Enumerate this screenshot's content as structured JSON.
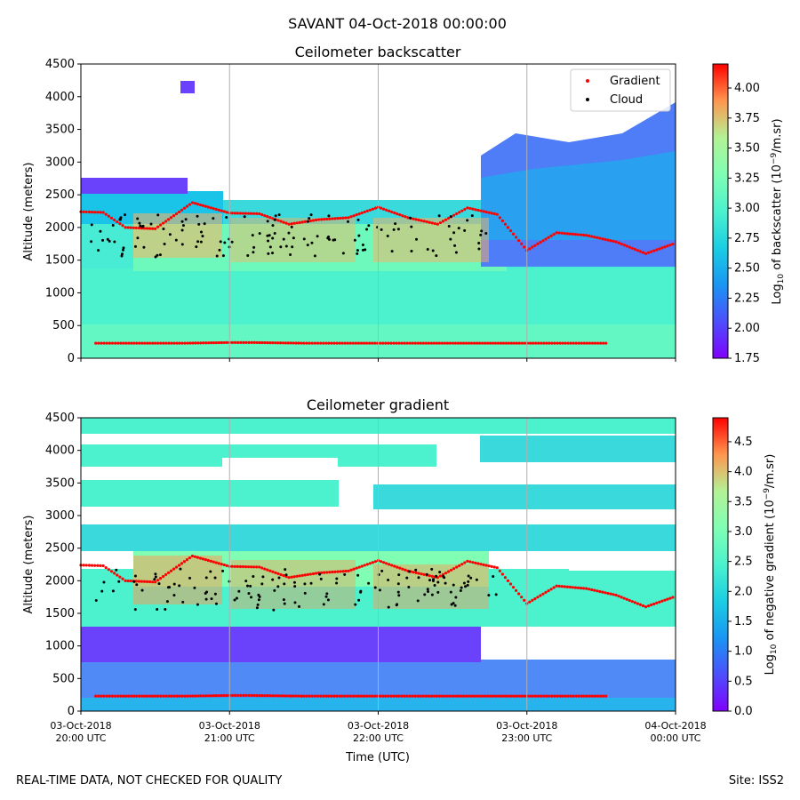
{
  "figure": {
    "suptitle": "SAVANT 04-Oct-2018 00:00:00",
    "footer_left": "REAL-TIME DATA, NOT CHECKED FOR QUALITY",
    "footer_right": "Site: ISS2"
  },
  "chart_data": [
    {
      "type": "heatmap",
      "title": "Ceilometer backscatter",
      "xlabel": "",
      "ylabel": "Altitude (meters)",
      "ylim": [
        0,
        4500
      ],
      "yticks": [
        "0",
        "500",
        "1000",
        "1500",
        "2000",
        "2500",
        "3000",
        "3500",
        "4000",
        "4500"
      ],
      "xlim_hours": [
        20,
        24
      ],
      "xticks": [],
      "grid": "vertical lines at each hour",
      "colorbar": {
        "label": "Log10 of backscatter (10^-9/m.sr)",
        "label_parts": {
          "prefix": "Log",
          "sub": "10",
          "mid": " of backscatter (10",
          "sup": "−9",
          "suffix": "/m.sr)"
        },
        "range": [
          1.75,
          4.2
        ],
        "ticks": [
          "1.75",
          "2.00",
          "2.25",
          "2.50",
          "2.75",
          "3.00",
          "3.25",
          "3.50",
          "3.75",
          "4.00"
        ],
        "colormap": "rainbow"
      },
      "legend": {
        "placement": "top-right",
        "entries": [
          {
            "label": "Gradient",
            "color": "#ff0000"
          },
          {
            "label": "Cloud",
            "color": "#000000"
          }
        ]
      },
      "series": [
        {
          "name": "Gradient (upper layer)",
          "color": "#ff0000",
          "x_hours": [
            20.0,
            20.15,
            20.3,
            20.5,
            20.75,
            21.0,
            21.2,
            21.4,
            21.6,
            21.8,
            22.0,
            22.2,
            22.4,
            22.6,
            22.8,
            23.0,
            23.2,
            23.4,
            23.6,
            23.8,
            24.0
          ],
          "altitude_m": [
            2240,
            2230,
            2000,
            1980,
            2380,
            2220,
            2210,
            2050,
            2120,
            2150,
            2310,
            2150,
            2050,
            2300,
            2200,
            1650,
            1920,
            1880,
            1780,
            1600,
            1760
          ]
        },
        {
          "name": "Gradient (lower layer)",
          "color": "#ff0000",
          "x_hours": [
            20.1,
            20.25,
            20.5,
            20.7,
            21.0,
            21.15,
            21.5,
            21.65,
            22.05,
            22.25,
            22.7,
            22.95,
            23.15,
            23.35,
            23.55
          ],
          "altitude_m": [
            230,
            230,
            230,
            230,
            240,
            240,
            230,
            230,
            230,
            230,
            230,
            230,
            230,
            230,
            230
          ]
        }
      ]
    },
    {
      "type": "heatmap",
      "title": "Ceilometer gradient",
      "xlabel": "Time (UTC)",
      "ylabel": "Altitude (meters)",
      "ylim": [
        0,
        4500
      ],
      "yticks": [
        "0",
        "500",
        "1000",
        "1500",
        "2000",
        "2500",
        "3000",
        "3500",
        "4000",
        "4500"
      ],
      "xlim_hours": [
        20,
        24
      ],
      "xticks": [
        {
          "line1": "03-Oct-2018",
          "line2": "20:00 UTC"
        },
        {
          "line1": "03-Oct-2018",
          "line2": "21:00 UTC"
        },
        {
          "line1": "03-Oct-2018",
          "line2": "22:00 UTC"
        },
        {
          "line1": "03-Oct-2018",
          "line2": "23:00 UTC"
        },
        {
          "line1": "04-Oct-2018",
          "line2": "00:00 UTC"
        }
      ],
      "grid": "vertical lines at each hour",
      "colorbar": {
        "label": "Log10 of negative gradient (10^-9/m.sr)",
        "label_parts": {
          "prefix": "Log",
          "sub": "10",
          "mid": " of negative gradient (10",
          "sup": "−9",
          "suffix": "/m.sr)"
        },
        "range": [
          0.0,
          4.9
        ],
        "ticks": [
          "0.0",
          "0.5",
          "1.0",
          "1.5",
          "2.0",
          "2.5",
          "3.0",
          "3.5",
          "4.0",
          "4.5"
        ],
        "colormap": "rainbow"
      },
      "series": [
        {
          "name": "Gradient (upper layer)",
          "color": "#ff0000",
          "x_hours": [
            20.0,
            20.15,
            20.3,
            20.5,
            20.75,
            21.0,
            21.2,
            21.4,
            21.6,
            21.8,
            22.0,
            22.2,
            22.4,
            22.6,
            22.8,
            23.0,
            23.2,
            23.4,
            23.6,
            23.8,
            24.0
          ],
          "altitude_m": [
            2240,
            2230,
            2000,
            1980,
            2380,
            2220,
            2210,
            2050,
            2120,
            2150,
            2310,
            2150,
            2050,
            2300,
            2200,
            1650,
            1920,
            1880,
            1780,
            1600,
            1760
          ]
        },
        {
          "name": "Gradient (lower layer)",
          "color": "#ff0000",
          "x_hours": [
            20.1,
            20.25,
            20.5,
            20.7,
            21.0,
            21.15,
            21.5,
            21.65,
            22.05,
            22.25,
            22.7,
            22.95,
            23.15,
            23.35,
            23.55
          ],
          "altitude_m": [
            230,
            230,
            230,
            230,
            240,
            240,
            230,
            230,
            230,
            230,
            230,
            230,
            230,
            230,
            230
          ]
        }
      ]
    }
  ]
}
